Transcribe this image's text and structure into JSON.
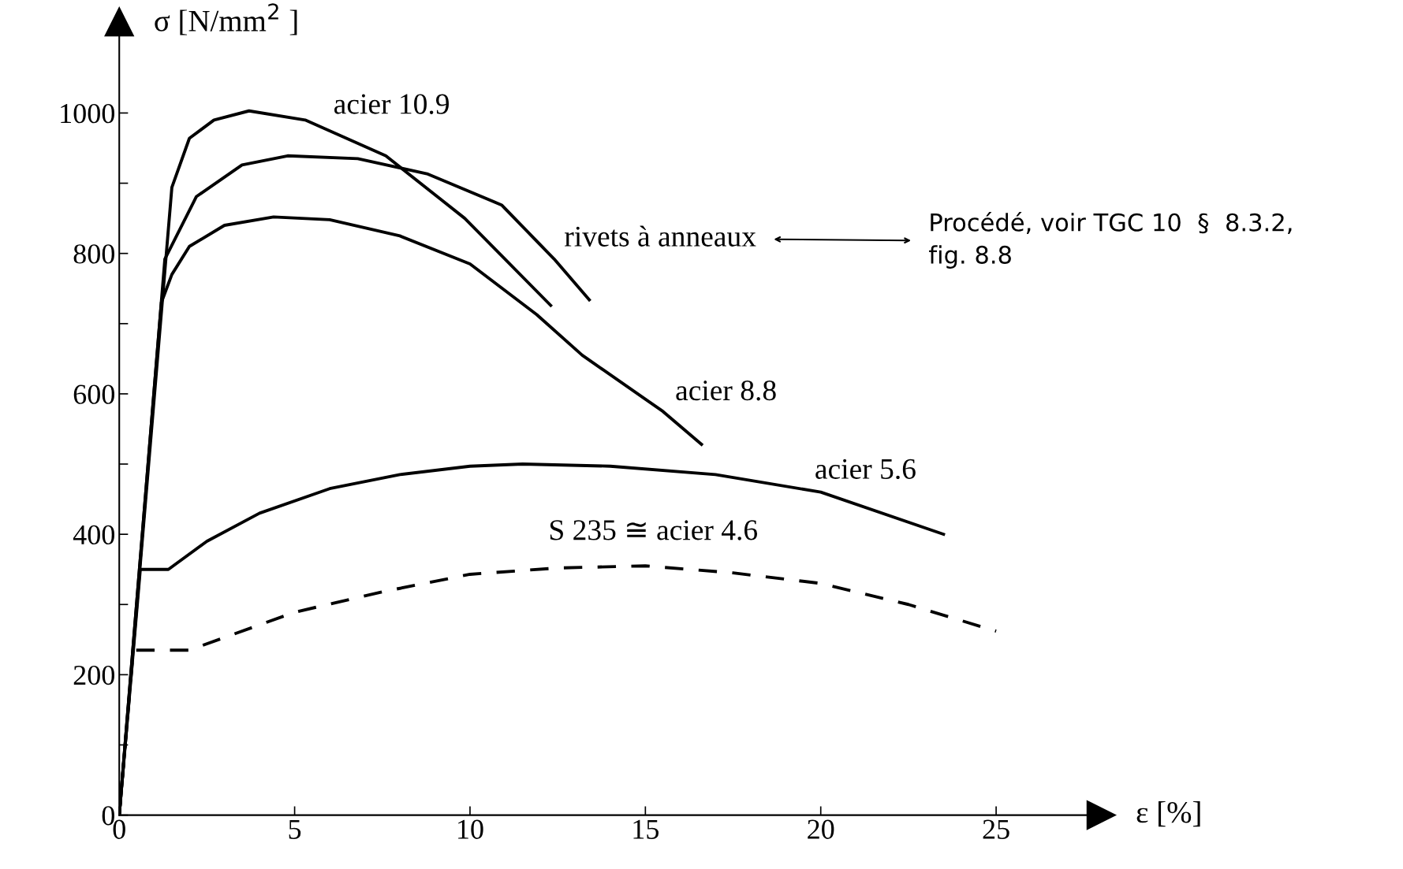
{
  "chart_data": {
    "type": "line",
    "xlabel": "ε [%]",
    "ylabel": "σ [N/mm$^{2}$ ]",
    "xlim": [
      0,
      28
    ],
    "ylim": [
      0,
      1130
    ],
    "xticks": [
      0,
      5,
      10,
      15,
      20,
      25
    ],
    "yticks": [
      0,
      {
        "value": 100,
        "label": null
      },
      200,
      {
        "value": 300,
        "label": null
      },
      400,
      {
        "value": 500,
        "label": null
      },
      600,
      {
        "value": 700,
        "label": null
      },
      800,
      {
        "value": 900,
        "label": null
      },
      1000
    ],
    "grid": false,
    "legend": false,
    "marker": "none",
    "series": [
      {
        "color": "#000000",
        "line_style": "solid",
        "x": [
          0,
          1.5,
          2.0,
          2.7,
          3.7,
          5.3,
          7.6,
          9.85,
          12.3
        ],
        "values": [
          0,
          894,
          964,
          990,
          1003,
          990,
          939,
          850,
          726
        ]
      },
      {
        "color": "#000000",
        "line_style": "solid",
        "x": [
          0,
          1.3,
          2.2,
          3.5,
          4.8,
          6.8,
          8.8,
          10.9,
          12.4,
          13.4
        ],
        "values": [
          0,
          792,
          881,
          926,
          939,
          935,
          913,
          869,
          792,
          734
        ]
      },
      {
        "color": "#000000",
        "line_style": "solid",
        "x": [
          0,
          1.2,
          1.5,
          2.0,
          3.0,
          4.4,
          6.0,
          8.0,
          10.0,
          11.9,
          13.2,
          15.5,
          16.6
        ],
        "values": [
          0,
          730,
          770,
          810,
          840,
          852,
          848,
          825,
          785,
          713,
          655,
          575,
          528
        ]
      },
      {
        "color": "#000000",
        "line_style": "solid",
        "x": [
          0,
          0.6,
          1.4,
          2.5,
          4,
          6,
          8,
          10,
          11.5,
          14,
          17,
          20,
          23.5
        ],
        "values": [
          0,
          350,
          350,
          390,
          430,
          465,
          485,
          497,
          500,
          497,
          485,
          460,
          400
        ]
      },
      {
        "color": "#000000",
        "line_style": "dashed",
        "x": [
          0,
          0.4,
          2.0,
          5,
          7.5,
          10,
          12.5,
          15,
          17.5,
          20,
          22.5,
          25
        ],
        "values": [
          0,
          235,
          235,
          289,
          318,
          343,
          352,
          355,
          345,
          330,
          300,
          262
        ]
      }
    ],
    "annotations": [
      "acier 10.9",
      "rivets à anneaux",
      "Procédé, voir TGC 10  §  8.3.2,\nfig. 8.8",
      "acier 8.8",
      "acier 5.6",
      "S 235 ≅ acier 4.6"
    ]
  }
}
